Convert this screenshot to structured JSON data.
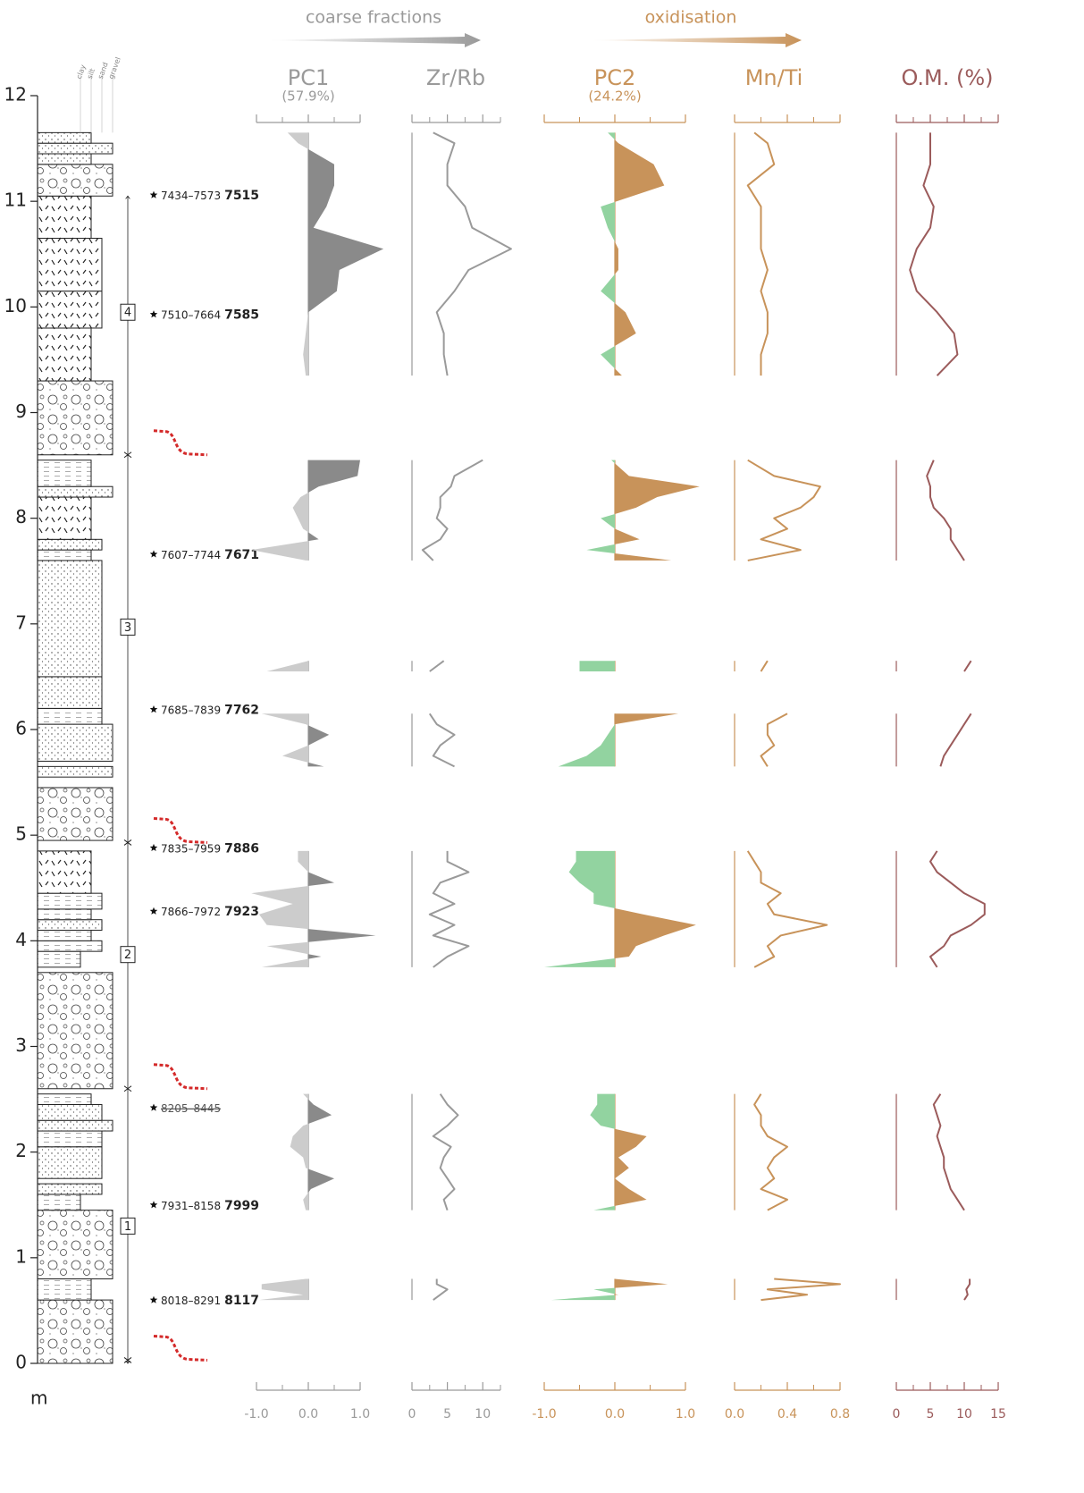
{
  "chart_data": {
    "type": "depth-profile",
    "ylabel": "m",
    "ylim": [
      0,
      12
    ],
    "yticks": [
      0,
      1,
      2,
      3,
      4,
      5,
      6,
      7,
      8,
      9,
      10,
      11,
      12
    ],
    "lithology_classes": [
      "clay",
      "silt",
      "sand",
      "gravel"
    ],
    "units": [
      {
        "label": "1",
        "depth": 1.3
      },
      {
        "label": "2",
        "depth": 3.87
      },
      {
        "label": "3",
        "depth": 6.97
      },
      {
        "label": "4",
        "depth": 9.95
      }
    ],
    "hiatuses": [
      0.03,
      2.6,
      4.93,
      8.6
    ],
    "dates": [
      {
        "depth": 11.06,
        "range": "7434–7573",
        "median": "7515"
      },
      {
        "depth": 9.93,
        "range": "7510–7664",
        "median": "7585"
      },
      {
        "depth": 7.66,
        "range": "7607–7744",
        "median": "7671"
      },
      {
        "depth": 6.19,
        "range": "7685–7839",
        "median": "7762"
      },
      {
        "depth": 4.88,
        "range": "7835–7959",
        "median": "7886"
      },
      {
        "depth": 4.28,
        "range": "7866–7972",
        "median": "7923"
      },
      {
        "depth": 2.42,
        "range": "8205–8445",
        "rejected": true
      },
      {
        "depth": 1.5,
        "range": "7931–8158",
        "median": "7999"
      },
      {
        "depth": 0.6,
        "range": "8018–8291",
        "median": "8117"
      }
    ],
    "groups": [
      {
        "label": "coarse fractions",
        "color": "#9a9a9a"
      },
      {
        "label": "oxidisation",
        "color": "#c8935a"
      }
    ],
    "depth": [
      0.6,
      0.65,
      0.7,
      0.75,
      0.8,
      null,
      1.45,
      1.55,
      1.65,
      1.75,
      1.85,
      1.95,
      2.05,
      2.15,
      2.25,
      2.35,
      2.45,
      2.55,
      null,
      3.75,
      3.85,
      3.95,
      4.05,
      4.15,
      4.25,
      4.35,
      4.45,
      4.55,
      4.65,
      4.75,
      4.85,
      null,
      5.65,
      5.75,
      5.85,
      5.95,
      6.05,
      6.15,
      null,
      6.55,
      6.65,
      null,
      7.6,
      7.7,
      7.8,
      7.9,
      8.0,
      8.1,
      8.2,
      8.3,
      8.4,
      8.55,
      null,
      9.35,
      9.55,
      9.75,
      9.95,
      10.15,
      10.35,
      10.55,
      10.75,
      10.95,
      11.15,
      11.35,
      11.55,
      11.65
    ],
    "panels": [
      {
        "type": "area",
        "title": "PC1",
        "subtitle": "(57.9%)",
        "color": "#9a9a9a",
        "pos_color": "#8a8a8a",
        "neg_color": "#cccccc",
        "xlim": [
          -1,
          1
        ],
        "xticks": [
          {
            "value": -1,
            "label": "-1.0"
          },
          {
            "value": 0,
            "label": "0.0"
          },
          {
            "value": 1,
            "label": "1.0"
          }
        ],
        "minor_xticks": [
          -0.5,
          0.5
        ],
        "values": [
          -0.95,
          -0.1,
          -0.9,
          -0.9,
          -0.05,
          null,
          -0.05,
          -0.1,
          0.05,
          0.5,
          -0.05,
          -0.1,
          -0.35,
          -0.3,
          -0.1,
          0.45,
          0.1,
          -0.1,
          null,
          -0.9,
          0.25,
          -0.8,
          1.3,
          -0.8,
          -0.95,
          -0.3,
          -1.1,
          0.5,
          0.0,
          -0.2,
          -0.2,
          null,
          0.3,
          -0.5,
          0.0,
          0.4,
          -0.05,
          -0.9,
          null,
          -0.8,
          0.0,
          null,
          -0.05,
          -1.1,
          0.2,
          -0.1,
          -0.2,
          -0.3,
          -0.15,
          0.2,
          0.95,
          1.0,
          null,
          -0.05,
          -0.1,
          -0.05,
          0.0,
          0.55,
          0.6,
          1.45,
          0.1,
          0.35,
          0.5,
          0.5,
          -0.2,
          -0.4
        ]
      },
      {
        "type": "line",
        "title": "Zr/Rb",
        "color": "#9a9a9a",
        "xlim": [
          0,
          12.5
        ],
        "xticks": [
          0,
          5,
          10
        ],
        "minor_xticks": [
          2.5,
          7.5,
          12.5
        ],
        "values": [
          3,
          4,
          5,
          3.5,
          3.5,
          null,
          5,
          4.5,
          6,
          5,
          4,
          4.5,
          5.5,
          3,
          5,
          6.5,
          5,
          4,
          null,
          3,
          5,
          8,
          3,
          6,
          2.5,
          6,
          3,
          4,
          8,
          5,
          5,
          null,
          6,
          3,
          4,
          6,
          3.5,
          2.5,
          null,
          2.5,
          4.5,
          null,
          3,
          1.5,
          4,
          5,
          3.5,
          4,
          4,
          5.5,
          6,
          10,
          null,
          5,
          4.5,
          4.5,
          3.5,
          6,
          8,
          14,
          8.5,
          7.5,
          5,
          5,
          6,
          3
        ]
      },
      {
        "type": "area",
        "title": "PC2",
        "subtitle": "(24.2%)",
        "color": "#c8935a",
        "pos_color": "#c8935a",
        "neg_color": "#92d3a0",
        "xlim": [
          -1,
          1
        ],
        "xticks": [
          {
            "value": -1,
            "label": "-1.0"
          },
          {
            "value": 0,
            "label": "0.0"
          },
          {
            "value": 1,
            "label": "1.0"
          }
        ],
        "minor_xticks": [
          -0.5,
          0.5
        ],
        "values": [
          -0.9,
          0.05,
          -0.3,
          0.75,
          0.0,
          null,
          -0.3,
          0.45,
          0.2,
          0.0,
          0.2,
          0.05,
          0.3,
          0.45,
          -0.2,
          -0.35,
          -0.25,
          -0.25,
          null,
          -1.0,
          0.2,
          0.3,
          0.7,
          1.15,
          0.4,
          -0.3,
          -0.3,
          -0.5,
          -0.65,
          -0.55,
          -0.55,
          null,
          -0.8,
          -0.4,
          -0.2,
          -0.1,
          0.0,
          0.9,
          null,
          -0.5,
          -0.5,
          null,
          0.8,
          -0.4,
          0.35,
          0.0,
          -0.2,
          0.3,
          0.6,
          1.2,
          0.2,
          -0.05,
          null,
          0.1,
          -0.2,
          0.3,
          0.15,
          -0.2,
          0.05,
          0.05,
          -0.1,
          -0.2,
          0.7,
          0.55,
          0.05,
          -0.1
        ]
      },
      {
        "type": "line",
        "title": "Mn/Ti",
        "color": "#c8935a",
        "xlim": [
          0,
          0.8
        ],
        "xticks": [
          {
            "value": 0,
            "label": "0.0"
          },
          0.4,
          0.8
        ],
        "minor_xticks": [
          0.2,
          0.6
        ],
        "values": [
          0.2,
          0.55,
          0.25,
          0.8,
          0.3,
          null,
          0.25,
          0.4,
          0.2,
          0.3,
          0.25,
          0.3,
          0.4,
          0.25,
          0.2,
          0.2,
          0.15,
          0.2,
          null,
          0.15,
          0.3,
          0.25,
          0.35,
          0.7,
          0.3,
          0.25,
          0.35,
          0.2,
          0.2,
          0.15,
          0.1,
          null,
          0.25,
          0.2,
          0.3,
          0.25,
          0.25,
          0.4,
          null,
          0.2,
          0.25,
          null,
          0.1,
          0.5,
          0.2,
          0.4,
          0.3,
          0.5,
          0.6,
          0.65,
          0.3,
          0.1,
          null,
          0.2,
          0.2,
          0.25,
          0.25,
          0.2,
          0.25,
          0.2,
          0.2,
          0.2,
          0.1,
          0.3,
          0.25,
          0.15
        ]
      },
      {
        "type": "line",
        "title": "O.M. (%)",
        "color": "#9b5b5b",
        "xlim": [
          0,
          15
        ],
        "xticks": [
          0,
          5,
          10,
          15
        ],
        "minor_xticks": [
          2.5,
          7.5,
          12.5
        ],
        "values": [
          10,
          10.5,
          10.3,
          10.8,
          10.8,
          null,
          10,
          9,
          8,
          7.5,
          7,
          7,
          6.5,
          6,
          6.5,
          6,
          5.5,
          6.5,
          null,
          6,
          5,
          7,
          8,
          11,
          13,
          13,
          10,
          8,
          6,
          5,
          6,
          null,
          6.5,
          7,
          8,
          9,
          10,
          11,
          null,
          10,
          11,
          null,
          10,
          9,
          8,
          8,
          7,
          5.5,
          5,
          5,
          4.5,
          5.5,
          null,
          6,
          9,
          8.5,
          6,
          3,
          2,
          3,
          5,
          5.5,
          4,
          5,
          5,
          5
        ]
      }
    ]
  }
}
